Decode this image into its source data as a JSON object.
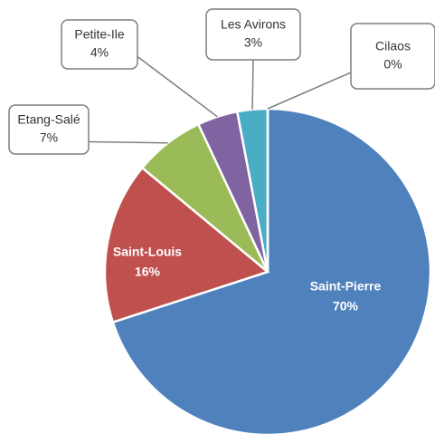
{
  "chart_data": {
    "type": "pie",
    "categories": [
      "Saint-Pierre",
      "Saint-Louis",
      "Etang-Salé",
      "Petite-Ile",
      "Les Avirons",
      "Cilaos"
    ],
    "values": [
      70,
      16,
      7,
      4,
      3,
      0
    ],
    "value_labels": [
      "70%",
      "16%",
      "7%",
      "4%",
      "3%",
      "0%"
    ],
    "colors": [
      "#4f81bd",
      "#c0504d",
      "#9bbb59",
      "#8064a2",
      "#4bacc6",
      "#f79646"
    ]
  }
}
